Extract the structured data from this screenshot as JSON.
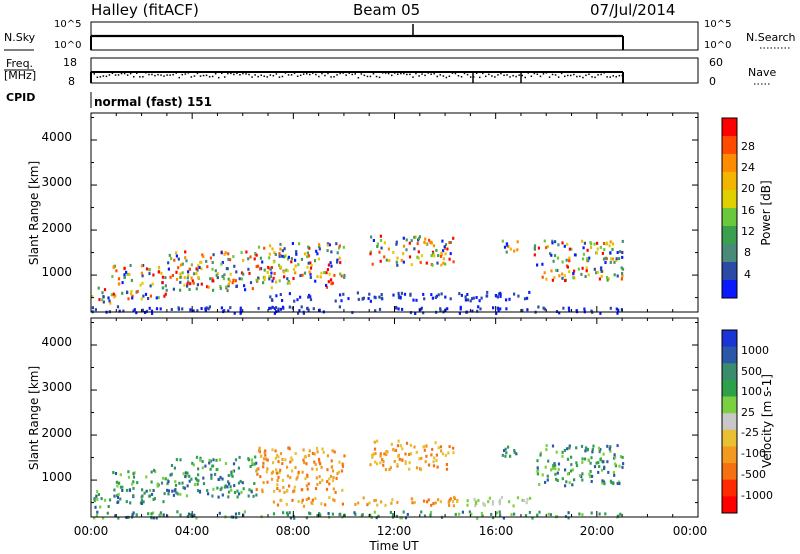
{
  "header": {
    "station": "Halley (fitACF)",
    "beam": "Beam 05",
    "date": "07/Jul/2014"
  },
  "sky_panel": {
    "left_label": "N.Sky",
    "right_label": "N.Search",
    "tick_top": "10^5",
    "tick_bottom": "10^0"
  },
  "freq_panel": {
    "left_label_line1": "Freq.",
    "left_label_line2": "[MHz]",
    "left_ticks": [
      "18",
      "8"
    ],
    "right_ticks": [
      "60",
      "0"
    ],
    "right_label": "Nave"
  },
  "cpid": {
    "label": "CPID",
    "value": "normal (fast) 151"
  },
  "x_axis": {
    "label": "Time UT",
    "ticks": [
      "00:00",
      "04:00",
      "08:00",
      "12:00",
      "16:00",
      "20:00",
      "00:00"
    ]
  },
  "power_panel": {
    "ylabel": "Slant Range [km]",
    "yticks": [
      "4000",
      "3000",
      "2000",
      "1000"
    ],
    "colorbar_label": "Power [dB]",
    "colorbar_ticks": [
      "28",
      "24",
      "20",
      "16",
      "12",
      "8",
      "4"
    ],
    "colorbar_colors": [
      "#ff0000",
      "#ff4a00",
      "#ff8c00",
      "#f2b600",
      "#e0d000",
      "#6ac83c",
      "#3aa050",
      "#4a8a78",
      "#2a4aa6",
      "#0a1aff"
    ]
  },
  "velocity_panel": {
    "ylabel": "Slant Range [km]",
    "yticks": [
      "4000",
      "3000",
      "2000",
      "1000"
    ],
    "colorbar_label": "Velocity [m s-1]",
    "colorbar_ticks": [
      "1000",
      "500",
      "100",
      "25",
      "-25",
      "-100",
      "-500",
      "-1000"
    ],
    "colorbar_colors": [
      "#1a34d6",
      "#2a58a8",
      "#3a8c6e",
      "#2ea04a",
      "#7ad040",
      "#c8c8c8",
      "#e8c030",
      "#f29a20",
      "#f57010",
      "#ff2a00",
      "#ff0000"
    ]
  },
  "chart_data": {
    "type": "heatmap",
    "x_range_hours": [
      0,
      24
    ],
    "y_range_km": [
      180,
      4600
    ],
    "regions": [
      {
        "t0": 0.0,
        "t1": 0.8,
        "r0": 400,
        "r1": 800
      },
      {
        "t0": 0.8,
        "t1": 3.0,
        "r0": 500,
        "r1": 1250
      },
      {
        "t0": 3.0,
        "t1": 6.5,
        "r0": 650,
        "r1": 1550
      },
      {
        "t0": 6.5,
        "t1": 10.0,
        "r0": 750,
        "r1": 1750
      },
      {
        "t0": 11.0,
        "t1": 14.3,
        "r0": 1250,
        "r1": 1900
      },
      {
        "t0": 7.0,
        "t1": 17.5,
        "r0": 450,
        "r1": 650
      },
      {
        "t0": 16.2,
        "t1": 17.0,
        "r0": 1500,
        "r1": 1800
      },
      {
        "t0": 17.5,
        "t1": 21.0,
        "r0": 900,
        "r1": 1800
      },
      {
        "t0": 0.0,
        "t1": 21.0,
        "r0": 180,
        "r1": 330
      }
    ]
  }
}
